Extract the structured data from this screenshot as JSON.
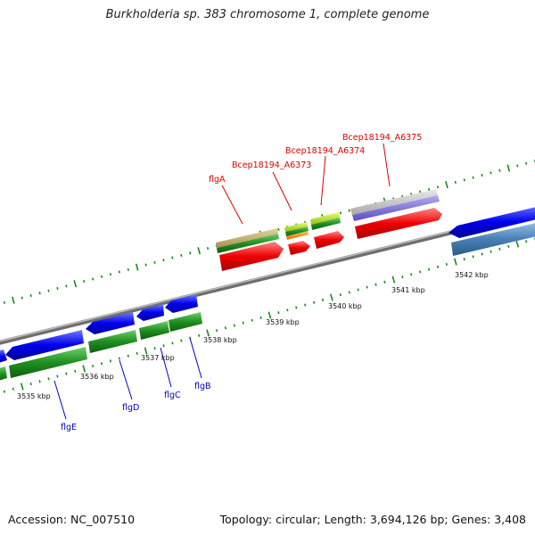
{
  "title": "Burkholderia sp. 383 chromosome 1, complete genome",
  "footer": {
    "accession": "Accession: NC_007510",
    "summary": "Topology: circular; Length: 3,694,126 bp; Genes: 3,408"
  },
  "colors": {
    "backbone": "#888888",
    "tick": "#1a8a1a",
    "label_top": "#dd0000",
    "label_bottom": "#0000cc"
  },
  "tick_labels": [
    "3535 kbp",
    "3536 kbp",
    "3537 kbp",
    "3538 kbp",
    "3539 kbp",
    "3540 kbp",
    "3541 kbp",
    "3542 kbp"
  ],
  "gene_labels_top": [
    "flgA",
    "Bcep18194_A6373",
    "Bcep18194_A6374",
    "Bcep18194_A6375"
  ],
  "gene_labels_bottom": [
    "flgE",
    "flgD",
    "flgC",
    "flgB"
  ]
}
